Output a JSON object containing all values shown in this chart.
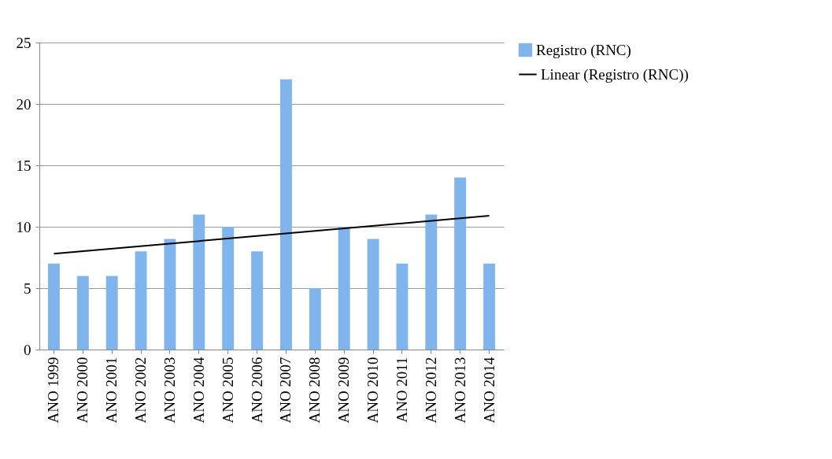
{
  "chart_data": {
    "type": "bar",
    "categories": [
      "ANO 1999",
      "ANO 2000",
      "ANO 2001",
      "ANO 2002",
      "ANO 2003",
      "ANO 2004",
      "ANO 2005",
      "ANO 2006",
      "ANO 2007",
      "ANO 2008",
      "ANO 2009",
      "ANO 2010",
      "ANO 2011",
      "ANO 2012",
      "ANO 2013",
      "ANO 2014"
    ],
    "series": [
      {
        "name": "Registro (RNC)",
        "color": "#7fb5ec",
        "values": [
          7,
          6,
          6,
          8,
          9,
          11,
          10,
          8,
          22,
          5,
          10,
          9,
          7,
          11,
          14,
          7
        ]
      },
      {
        "name": "Linear (Registro (RNC))",
        "type": "line",
        "color": "#000000",
        "x": [
          "ANO 1999",
          "ANO 2014"
        ],
        "values": [
          7.8,
          10.9
        ]
      }
    ],
    "ylim": [
      0,
      25
    ],
    "yticks": [
      0,
      5,
      10,
      15,
      20,
      25
    ],
    "grid": "y",
    "legend": "right"
  }
}
